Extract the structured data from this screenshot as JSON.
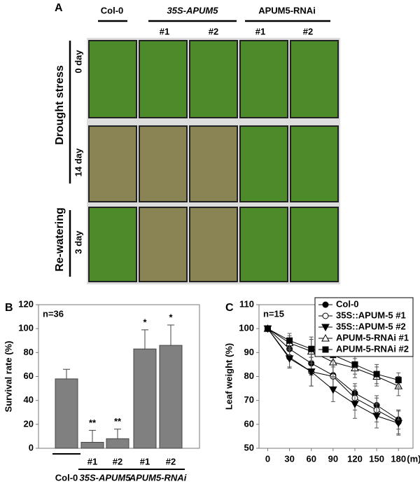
{
  "panel_a": {
    "label": "A",
    "columns": [
      "Col-0",
      "35S-APUM5",
      "APUM5-RNAi"
    ],
    "lines": [
      "#1",
      "#2",
      "#1",
      "#2"
    ],
    "conditions": [
      "Drought stress",
      "Re-watering"
    ],
    "times": [
      "0 day",
      "14 day",
      "3 day"
    ]
  },
  "chart_data": [
    {
      "type": "bar",
      "panel": "B",
      "ylabel": "Survival rate (%)",
      "annotation": "n=36",
      "categories": [
        "Col-0",
        "#1",
        "#2",
        "#1",
        "#2"
      ],
      "groups": [
        "35S-APUM5",
        "APUM5-RNAi"
      ],
      "values": [
        58,
        5,
        8,
        83,
        86
      ],
      "errors": [
        8,
        10,
        8,
        16,
        17
      ],
      "significance": [
        null,
        "**",
        "**",
        "*",
        "*"
      ],
      "color": "#808080",
      "ylim": [
        0,
        120
      ],
      "yticks": [
        0,
        20,
        40,
        60,
        80,
        100,
        120
      ]
    },
    {
      "type": "line",
      "panel": "C",
      "ylabel": "Leaf weight (%)",
      "xlabel": "(m)",
      "annotation": "n=15",
      "x": [
        0,
        30,
        60,
        90,
        120,
        150,
        180
      ],
      "xlim": [
        -12,
        200
      ],
      "xticks": [
        0,
        30,
        60,
        90,
        120,
        150,
        180
      ],
      "ylim": [
        50,
        110
      ],
      "yticks": [
        50,
        60,
        70,
        80,
        90,
        100,
        110
      ],
      "color": "#000000",
      "legend": "top-right",
      "series": [
        {
          "name": "Col-0",
          "marker": "circle-filled",
          "values": [
            100,
            91.5,
            85.5,
            80.5,
            73,
            68,
            62
          ],
          "errors": [
            0,
            3,
            5,
            6,
            4,
            4,
            4
          ]
        },
        {
          "name": "35S::APUM-5 #1",
          "marker": "circle-open",
          "values": [
            100,
            88,
            82,
            80,
            71,
            66,
            61
          ],
          "errors": [
            0,
            4,
            6,
            5,
            5,
            5,
            5
          ]
        },
        {
          "name": "35S::APUM-5 #2",
          "marker": "triangle-down",
          "values": [
            100,
            87.5,
            82,
            74.5,
            68.5,
            63.5,
            60.5
          ],
          "errors": [
            0,
            4,
            6,
            5,
            6,
            5,
            5
          ]
        },
        {
          "name": "APUM-5-RNAi #1",
          "marker": "triangle-open",
          "values": [
            100,
            94,
            90.5,
            86,
            83.5,
            80,
            76
          ],
          "errors": [
            0,
            3,
            5,
            6,
            4,
            4,
            4
          ]
        },
        {
          "name": "APUM-5-RNAi #2",
          "marker": "square-filled",
          "values": [
            100,
            95,
            91.5,
            89,
            85,
            81,
            78.5
          ],
          "errors": [
            0,
            3,
            5,
            5,
            4,
            4,
            3
          ]
        }
      ]
    }
  ]
}
